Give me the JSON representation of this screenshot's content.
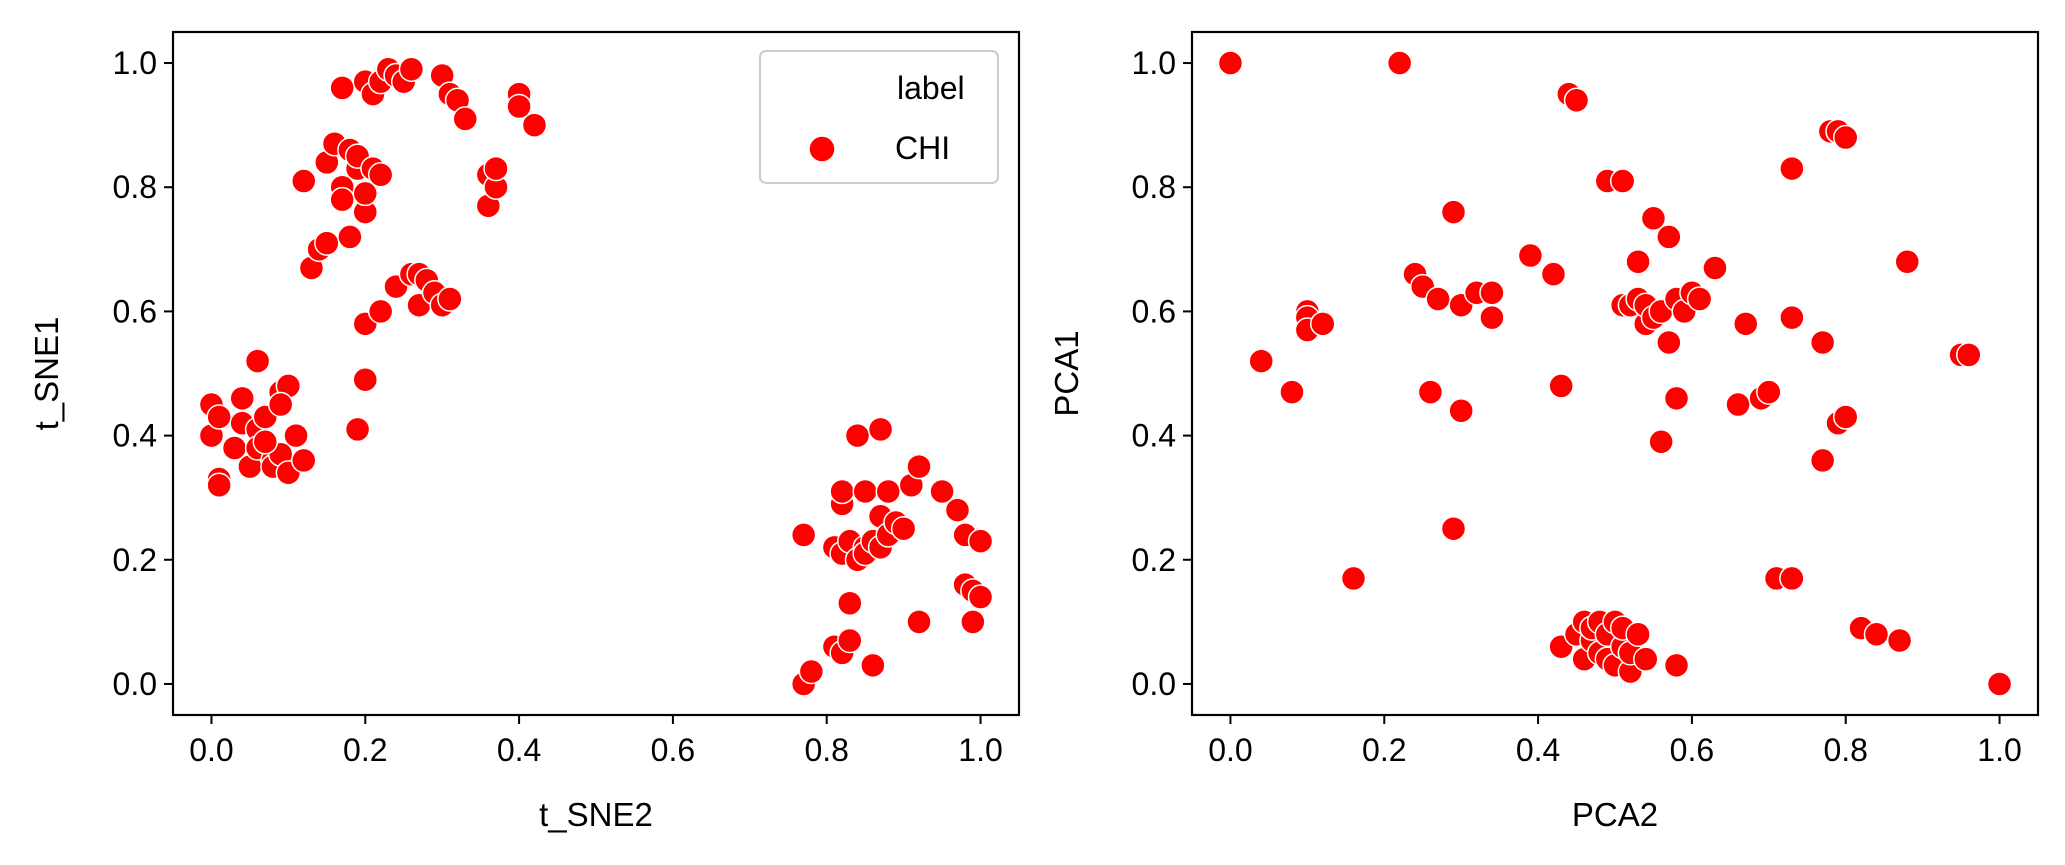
{
  "chart_data": [
    {
      "type": "scatter",
      "xlabel": "t_SNE2",
      "ylabel": "t_SNE1",
      "xlim": [
        -0.05,
        1.05
      ],
      "ylim": [
        -0.05,
        1.05
      ],
      "xticks": [
        "0.0",
        "0.2",
        "0.4",
        "0.6",
        "0.8",
        "1.0"
      ],
      "yticks": [
        "0.0",
        "0.2",
        "0.4",
        "0.6",
        "0.8",
        "1.0"
      ],
      "grid": false,
      "legend": {
        "title": "label",
        "entries": [
          "CHI"
        ],
        "placement": "upper right"
      },
      "series": [
        {
          "name": "CHI",
          "color": "#ff0000",
          "points": [
            [
              0.0,
              0.45
            ],
            [
              0.0,
              0.4
            ],
            [
              0.01,
              0.43
            ],
            [
              0.01,
              0.33
            ],
            [
              0.01,
              0.32
            ],
            [
              0.03,
              0.38
            ],
            [
              0.04,
              0.42
            ],
            [
              0.04,
              0.46
            ],
            [
              0.05,
              0.35
            ],
            [
              0.06,
              0.52
            ],
            [
              0.06,
              0.41
            ],
            [
              0.06,
              0.38
            ],
            [
              0.07,
              0.43
            ],
            [
              0.08,
              0.36
            ],
            [
              0.08,
              0.35
            ],
            [
              0.09,
              0.37
            ],
            [
              0.09,
              0.47
            ],
            [
              0.1,
              0.48
            ],
            [
              0.1,
              0.34
            ],
            [
              0.11,
              0.4
            ],
            [
              0.12,
              0.36
            ],
            [
              0.09,
              0.45
            ],
            [
              0.07,
              0.39
            ],
            [
              0.12,
              0.81
            ],
            [
              0.13,
              0.67
            ],
            [
              0.14,
              0.7
            ],
            [
              0.15,
              0.71
            ],
            [
              0.15,
              0.84
            ],
            [
              0.16,
              0.87
            ],
            [
              0.17,
              0.8
            ],
            [
              0.17,
              0.78
            ],
            [
              0.17,
              0.96
            ],
            [
              0.18,
              0.72
            ],
            [
              0.18,
              0.86
            ],
            [
              0.19,
              0.83
            ],
            [
              0.19,
              0.85
            ],
            [
              0.2,
              0.76
            ],
            [
              0.2,
              0.97
            ],
            [
              0.2,
              0.79
            ],
            [
              0.21,
              0.83
            ],
            [
              0.21,
              0.95
            ],
            [
              0.22,
              0.82
            ],
            [
              0.22,
              0.97
            ],
            [
              0.23,
              0.99
            ],
            [
              0.24,
              0.98
            ],
            [
              0.25,
              0.97
            ],
            [
              0.26,
              0.99
            ],
            [
              0.3,
              0.98
            ],
            [
              0.31,
              0.95
            ],
            [
              0.32,
              0.94
            ],
            [
              0.33,
              0.91
            ],
            [
              0.36,
              0.82
            ],
            [
              0.36,
              0.77
            ],
            [
              0.37,
              0.8
            ],
            [
              0.37,
              0.83
            ],
            [
              0.4,
              0.95
            ],
            [
              0.4,
              0.93
            ],
            [
              0.42,
              0.9
            ],
            [
              0.19,
              0.41
            ],
            [
              0.2,
              0.58
            ],
            [
              0.2,
              0.49
            ],
            [
              0.22,
              0.6
            ],
            [
              0.24,
              0.64
            ],
            [
              0.26,
              0.66
            ],
            [
              0.27,
              0.61
            ],
            [
              0.27,
              0.66
            ],
            [
              0.28,
              0.65
            ],
            [
              0.29,
              0.63
            ],
            [
              0.3,
              0.61
            ],
            [
              0.31,
              0.62
            ],
            [
              0.77,
              0.24
            ],
            [
              0.77,
              0.0
            ],
            [
              0.78,
              0.02
            ],
            [
              0.81,
              0.22
            ],
            [
              0.81,
              0.06
            ],
            [
              0.82,
              0.05
            ],
            [
              0.82,
              0.29
            ],
            [
              0.82,
              0.31
            ],
            [
              0.82,
              0.21
            ],
            [
              0.83,
              0.13
            ],
            [
              0.83,
              0.23
            ],
            [
              0.83,
              0.07
            ],
            [
              0.84,
              0.2
            ],
            [
              0.84,
              0.4
            ],
            [
              0.85,
              0.31
            ],
            [
              0.85,
              0.22
            ],
            [
              0.85,
              0.21
            ],
            [
              0.86,
              0.03
            ],
            [
              0.86,
              0.23
            ],
            [
              0.87,
              0.41
            ],
            [
              0.87,
              0.27
            ],
            [
              0.87,
              0.22
            ],
            [
              0.88,
              0.31
            ],
            [
              0.88,
              0.24
            ],
            [
              0.89,
              0.26
            ],
            [
              0.9,
              0.25
            ],
            [
              0.91,
              0.32
            ],
            [
              0.92,
              0.35
            ],
            [
              0.92,
              0.1
            ],
            [
              0.95,
              0.31
            ],
            [
              0.97,
              0.28
            ],
            [
              0.98,
              0.24
            ],
            [
              0.98,
              0.16
            ],
            [
              0.99,
              0.1
            ],
            [
              0.99,
              0.15
            ],
            [
              1.0,
              0.23
            ],
            [
              1.0,
              0.14
            ]
          ]
        }
      ]
    },
    {
      "type": "scatter",
      "xlabel": "PCA2",
      "ylabel": "PCA1",
      "xlim": [
        -0.05,
        1.05
      ],
      "ylim": [
        -0.05,
        1.05
      ],
      "xticks": [
        "0.0",
        "0.2",
        "0.4",
        "0.6",
        "0.8",
        "1.0"
      ],
      "yticks": [
        "0.0",
        "0.2",
        "0.4",
        "0.6",
        "0.8",
        "1.0"
      ],
      "grid": false,
      "series": [
        {
          "color": "#ff0000",
          "points": [
            [
              0.0,
              1.0
            ],
            [
              0.04,
              0.52
            ],
            [
              0.08,
              0.47
            ],
            [
              0.1,
              0.6
            ],
            [
              0.1,
              0.59
            ],
            [
              0.1,
              0.57
            ],
            [
              0.12,
              0.58
            ],
            [
              0.16,
              0.17
            ],
            [
              0.22,
              1.0
            ],
            [
              0.24,
              0.66
            ],
            [
              0.25,
              0.64
            ],
            [
              0.26,
              0.47
            ],
            [
              0.27,
              0.62
            ],
            [
              0.29,
              0.76
            ],
            [
              0.29,
              0.25
            ],
            [
              0.3,
              0.61
            ],
            [
              0.3,
              0.44
            ],
            [
              0.32,
              0.63
            ],
            [
              0.34,
              0.59
            ],
            [
              0.34,
              0.63
            ],
            [
              0.39,
              0.69
            ],
            [
              0.42,
              0.66
            ],
            [
              0.43,
              0.48
            ],
            [
              0.44,
              0.95
            ],
            [
              0.45,
              0.94
            ],
            [
              0.49,
              0.81
            ],
            [
              0.51,
              0.81
            ],
            [
              0.51,
              0.61
            ],
            [
              0.52,
              0.61
            ],
            [
              0.53,
              0.62
            ],
            [
              0.53,
              0.68
            ],
            [
              0.54,
              0.58
            ],
            [
              0.54,
              0.61
            ],
            [
              0.55,
              0.59
            ],
            [
              0.55,
              0.75
            ],
            [
              0.56,
              0.6
            ],
            [
              0.56,
              0.39
            ],
            [
              0.57,
              0.72
            ],
            [
              0.57,
              0.55
            ],
            [
              0.58,
              0.46
            ],
            [
              0.58,
              0.62
            ],
            [
              0.59,
              0.6
            ],
            [
              0.6,
              0.63
            ],
            [
              0.61,
              0.62
            ],
            [
              0.63,
              0.67
            ],
            [
              0.66,
              0.45
            ],
            [
              0.67,
              0.58
            ],
            [
              0.69,
              0.46
            ],
            [
              0.7,
              0.47
            ],
            [
              0.71,
              0.17
            ],
            [
              0.73,
              0.17
            ],
            [
              0.73,
              0.59
            ],
            [
              0.73,
              0.83
            ],
            [
              0.77,
              0.36
            ],
            [
              0.77,
              0.55
            ],
            [
              0.78,
              0.89
            ],
            [
              0.79,
              0.89
            ],
            [
              0.79,
              0.42
            ],
            [
              0.8,
              0.88
            ],
            [
              0.8,
              0.43
            ],
            [
              0.82,
              0.09
            ],
            [
              0.84,
              0.08
            ],
            [
              0.87,
              0.07
            ],
            [
              0.88,
              0.68
            ],
            [
              0.95,
              0.53
            ],
            [
              0.96,
              0.53
            ],
            [
              1.0,
              0.0
            ],
            [
              0.43,
              0.06
            ],
            [
              0.45,
              0.08
            ],
            [
              0.46,
              0.1
            ],
            [
              0.46,
              0.04
            ],
            [
              0.47,
              0.07
            ],
            [
              0.47,
              0.09
            ],
            [
              0.48,
              0.05
            ],
            [
              0.48,
              0.1
            ],
            [
              0.49,
              0.04
            ],
            [
              0.49,
              0.08
            ],
            [
              0.5,
              0.1
            ],
            [
              0.5,
              0.03
            ],
            [
              0.51,
              0.06
            ],
            [
              0.51,
              0.09
            ],
            [
              0.52,
              0.02
            ],
            [
              0.52,
              0.05
            ],
            [
              0.53,
              0.08
            ],
            [
              0.54,
              0.04
            ],
            [
              0.58,
              0.03
            ]
          ]
        }
      ]
    }
  ]
}
